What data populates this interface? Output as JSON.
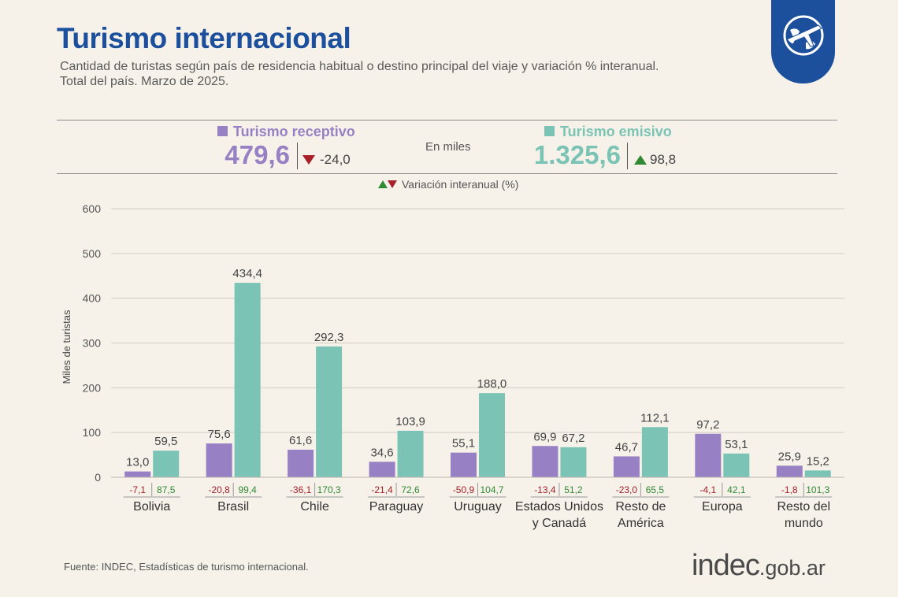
{
  "header": {
    "title": "Turismo internacional",
    "subtitle_line1": "Cantidad de turistas según país de residencia habitual o destino principal del viaje y variación % interanual.",
    "subtitle_line2": "Total del país. Marzo de 2025."
  },
  "summary": {
    "unit_note": "En miles",
    "receptivo": {
      "label": "Turismo receptivo",
      "value": "479,6",
      "delta": "-24,0",
      "direction": "down"
    },
    "emisivo": {
      "label": "Turismo emisivo",
      "value": "1.325,6",
      "delta": "98,8",
      "direction": "up"
    }
  },
  "legend": {
    "variation_label": "Variación interanual (%)"
  },
  "colors": {
    "receptivo": "#9880c4",
    "emisivo": "#7bc4b5",
    "negative": "#a8202a",
    "positive": "#2f8a33",
    "title": "#1c4f9c"
  },
  "chart_data": {
    "type": "bar",
    "ylabel": "Miles de turistas",
    "ylim": [
      0,
      600
    ],
    "yticks": [
      0,
      100,
      200,
      300,
      400,
      500,
      600
    ],
    "grid": true,
    "categories": [
      [
        "Bolivia"
      ],
      [
        "Brasil"
      ],
      [
        "Chile"
      ],
      [
        "Paraguay"
      ],
      [
        "Uruguay"
      ],
      [
        "Estados Unidos",
        "y Canadá"
      ],
      [
        "Resto de",
        "América"
      ],
      [
        "Europa"
      ],
      [
        "Resto del",
        "mundo"
      ]
    ],
    "series": [
      {
        "name": "Turismo receptivo",
        "values": [
          13.0,
          75.6,
          61.6,
          34.6,
          55.1,
          69.9,
          46.7,
          97.2,
          25.9
        ],
        "labels": [
          "13,0",
          "75,6",
          "61,6",
          "34,6",
          "55,1",
          "69,9",
          "46,7",
          "97,2",
          "25,9"
        ],
        "variation": [
          "-7,1",
          "-20,8",
          "-36,1",
          "-21,4",
          "-50,9",
          "-13,4",
          "-23,0",
          "-4,1",
          "-1,8"
        ]
      },
      {
        "name": "Turismo emisivo",
        "values": [
          59.5,
          434.4,
          292.3,
          103.9,
          188.0,
          67.2,
          112.1,
          53.1,
          15.2
        ],
        "labels": [
          "59,5",
          "434,4",
          "292,3",
          "103,9",
          "188,0",
          "67,2",
          "112,1",
          "53,1",
          "15,2"
        ],
        "variation": [
          "87,5",
          "99,4",
          "170,3",
          "72,6",
          "104,7",
          "51,2",
          "65,5",
          "42,1",
          "101,3"
        ]
      }
    ]
  },
  "footer": {
    "source": "Fuente: INDEC, Estadísticas de turismo internacional.",
    "logo_main": "indec",
    "logo_suffix": ".gob.ar"
  }
}
